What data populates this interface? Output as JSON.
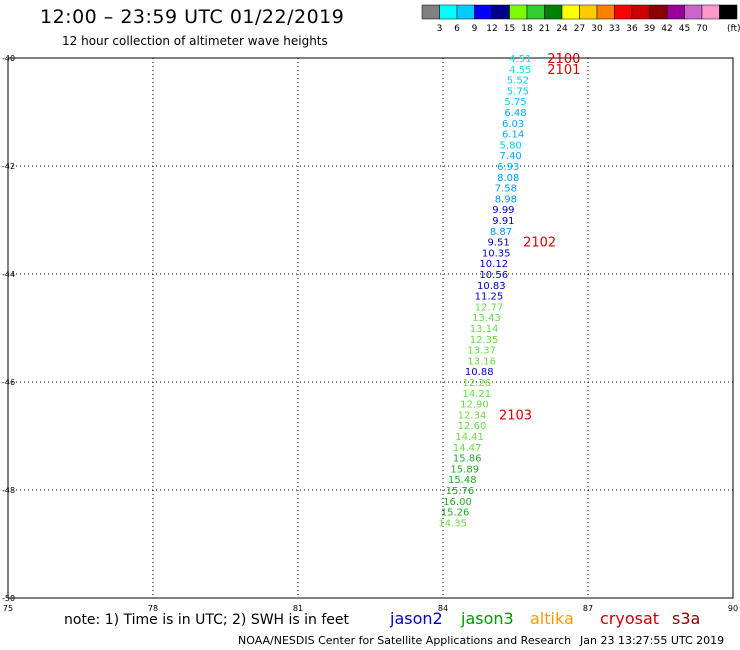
{
  "header": {
    "title": "12:00 – 23:59 UTC 01/22/2019",
    "subtitle": "12 hour collection of altimeter wave heights"
  },
  "colorbar": {
    "colors": [
      "#808080",
      "#00ffff",
      "#00ccff",
      "#0000ff",
      "#00008b",
      "#7cfc00",
      "#32cd32",
      "#008000",
      "#ffff00",
      "#ffcc00",
      "#ff8000",
      "#ff0000",
      "#cc0000",
      "#8b0000",
      "#990099",
      "#cc66cc",
      "#ff99cc",
      "#000000"
    ],
    "labels": [
      "3",
      "6",
      "9",
      "12",
      "15",
      "18",
      "21",
      "24",
      "27",
      "30",
      "33",
      "36",
      "39",
      "42",
      "45",
      "70"
    ],
    "unit": "(ft)"
  },
  "footer": {
    "note": "note:  1) Time is in UTC; 2) SWH is in feet",
    "credit": "NOAA/NESDIS Center for Satellite Applications and Research",
    "timestamp": "Jan 23 13:27:55 UTC 2019"
  },
  "satellites": [
    {
      "name": "jason2",
      "color": "#0000cc"
    },
    {
      "name": "jason3",
      "color": "#009900"
    },
    {
      "name": "altika",
      "color": "#ff9900"
    },
    {
      "name": "cryosat",
      "color": "#cc0000"
    },
    {
      "name": "s3a",
      "color": "#8b0000"
    }
  ],
  "chart_data": {
    "type": "scatter",
    "xlim": [
      75,
      90
    ],
    "ylim": [
      -50,
      -40
    ],
    "x_ticks": [
      "75",
      "78",
      "81",
      "84",
      "87",
      "90"
    ],
    "y_ticks": [
      "-40",
      "-42",
      "-44",
      "-46",
      "-48",
      "-50"
    ],
    "grid": true,
    "points": [
      {
        "label": "4.51",
        "x": 85.6,
        "y": -40.0,
        "color": "#00e5ee"
      },
      {
        "label": "4.55",
        "x": 85.6,
        "y": -40.2,
        "color": "#00e5ee"
      },
      {
        "label": "5.52",
        "x": 85.55,
        "y": -40.4,
        "color": "#00ccff"
      },
      {
        "label": "5.75",
        "x": 85.55,
        "y": -40.6,
        "color": "#00ccff"
      },
      {
        "label": "5.75",
        "x": 85.5,
        "y": -40.8,
        "color": "#00ccff"
      },
      {
        "label": "6.48",
        "x": 85.5,
        "y": -41.0,
        "color": "#00aaff"
      },
      {
        "label": "6.03",
        "x": 85.45,
        "y": -41.2,
        "color": "#00aaff"
      },
      {
        "label": "6.14",
        "x": 85.45,
        "y": -41.4,
        "color": "#00aaff"
      },
      {
        "label": "5.80",
        "x": 85.4,
        "y": -41.6,
        "color": "#00ccff"
      },
      {
        "label": "7.40",
        "x": 85.4,
        "y": -41.8,
        "color": "#00aaff"
      },
      {
        "label": "6.93",
        "x": 85.35,
        "y": -42.0,
        "color": "#00aaff"
      },
      {
        "label": "8.08",
        "x": 85.35,
        "y": -42.2,
        "color": "#0099ee"
      },
      {
        "label": "7.58",
        "x": 85.3,
        "y": -42.4,
        "color": "#0099ee"
      },
      {
        "label": "8.98",
        "x": 85.3,
        "y": -42.6,
        "color": "#0099ee"
      },
      {
        "label": "9.99",
        "x": 85.25,
        "y": -42.8,
        "color": "#0000cc"
      },
      {
        "label": "9.91",
        "x": 85.25,
        "y": -43.0,
        "color": "#0000cc"
      },
      {
        "label": "8.87",
        "x": 85.2,
        "y": -43.2,
        "color": "#0099ee"
      },
      {
        "label": "9.51",
        "x": 85.15,
        "y": -43.4,
        "color": "#0000cc"
      },
      {
        "label": "10.35",
        "x": 85.1,
        "y": -43.6,
        "color": "#0000cc"
      },
      {
        "label": "10.12",
        "x": 85.05,
        "y": -43.8,
        "color": "#0000cc"
      },
      {
        "label": "10.56",
        "x": 85.05,
        "y": -44.0,
        "color": "#0000cc"
      },
      {
        "label": "10.83",
        "x": 85.0,
        "y": -44.2,
        "color": "#0000cc"
      },
      {
        "label": "11.25",
        "x": 84.95,
        "y": -44.4,
        "color": "#0000cc"
      },
      {
        "label": "12.77",
        "x": 84.95,
        "y": -44.6,
        "color": "#66dd44"
      },
      {
        "label": "13.43",
        "x": 84.9,
        "y": -44.8,
        "color": "#66dd44"
      },
      {
        "label": "13.14",
        "x": 84.85,
        "y": -45.0,
        "color": "#66dd44"
      },
      {
        "label": "12.35",
        "x": 84.85,
        "y": -45.2,
        "color": "#66dd44"
      },
      {
        "label": "13.37",
        "x": 84.8,
        "y": -45.4,
        "color": "#66dd44"
      },
      {
        "label": "13.16",
        "x": 84.8,
        "y": -45.6,
        "color": "#66dd44"
      },
      {
        "label": "10.88",
        "x": 84.75,
        "y": -45.8,
        "color": "#0000cc"
      },
      {
        "label": "12.26",
        "x": 84.7,
        "y": -46.0,
        "color": "#66dd44"
      },
      {
        "label": "14.21",
        "x": 84.7,
        "y": -46.2,
        "color": "#66dd44"
      },
      {
        "label": "12.90",
        "x": 84.65,
        "y": -46.4,
        "color": "#66dd44"
      },
      {
        "label": "12.34",
        "x": 84.6,
        "y": -46.6,
        "color": "#66dd44"
      },
      {
        "label": "12.60",
        "x": 84.6,
        "y": -46.8,
        "color": "#66dd44"
      },
      {
        "label": "14.41",
        "x": 84.55,
        "y": -47.0,
        "color": "#66dd44"
      },
      {
        "label": "14.47",
        "x": 84.5,
        "y": -47.2,
        "color": "#66dd44"
      },
      {
        "label": "15.86",
        "x": 84.5,
        "y": -47.4,
        "color": "#22aa22"
      },
      {
        "label": "15.89",
        "x": 84.45,
        "y": -47.6,
        "color": "#22aa22"
      },
      {
        "label": "15.48",
        "x": 84.4,
        "y": -47.8,
        "color": "#22aa22"
      },
      {
        "label": "15.76",
        "x": 84.35,
        "y": -48.0,
        "color": "#22aa22"
      },
      {
        "label": "16.00",
        "x": 84.3,
        "y": -48.2,
        "color": "#22aa22"
      },
      {
        "label": "15.26",
        "x": 84.25,
        "y": -48.4,
        "color": "#22aa22"
      },
      {
        "label": "14.35",
        "x": 84.2,
        "y": -48.6,
        "color": "#66dd44"
      }
    ],
    "time_markers": [
      {
        "label": "2100",
        "x": 86.5,
        "y": -40.0,
        "color": "#dd0000"
      },
      {
        "label": "2101",
        "x": 86.5,
        "y": -40.2,
        "color": "#dd0000"
      },
      {
        "label": "2102",
        "x": 86.0,
        "y": -43.4,
        "color": "#dd0000"
      },
      {
        "label": "2103",
        "x": 85.5,
        "y": -46.6,
        "color": "#dd0000"
      }
    ]
  }
}
